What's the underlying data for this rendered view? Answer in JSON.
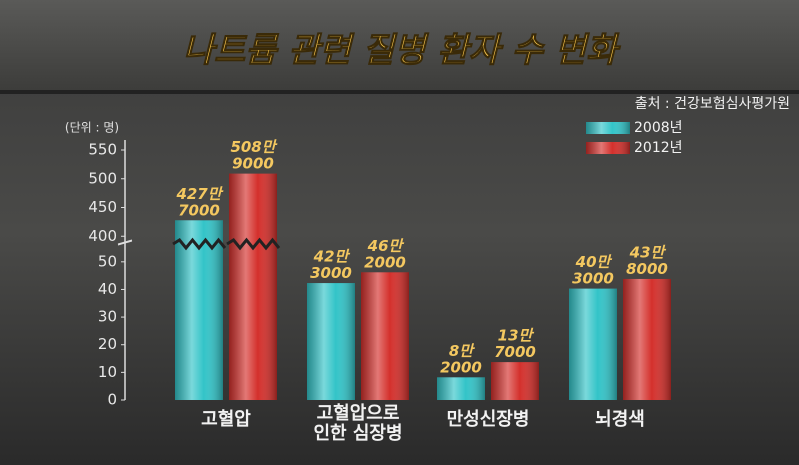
{
  "chart_data": {
    "type": "bar",
    "title": "나트륨 관련 질병 환자 수 변화",
    "source": "출처 : 건강보험심사평가원",
    "unit_label": "(단위 : 명)",
    "categories": [
      "고혈압",
      "고혈압으로\n인한 심장병",
      "만성신장병",
      "뇌경색"
    ],
    "series": [
      {
        "name": "2008년",
        "color": "#33c4c8",
        "values": [
          427.7,
          42.3,
          8.2,
          40.3
        ],
        "value_labels": [
          "427만\n7000",
          "42만\n3000",
          "8만\n2000",
          "40만\n3000"
        ]
      },
      {
        "name": "2012년",
        "color": "#d4302c",
        "values": [
          508.9,
          46.2,
          13.7,
          43.8
        ],
        "value_labels": [
          "508만\n9000",
          "46만\n2000",
          "13만\n7000",
          "43만\n8000"
        ]
      }
    ],
    "ylim": [
      0,
      550
    ],
    "axis_break": [
      55,
      390
    ],
    "yticks": [
      0,
      10,
      20,
      30,
      40,
      50,
      400,
      450,
      500,
      550
    ],
    "grid": false
  }
}
